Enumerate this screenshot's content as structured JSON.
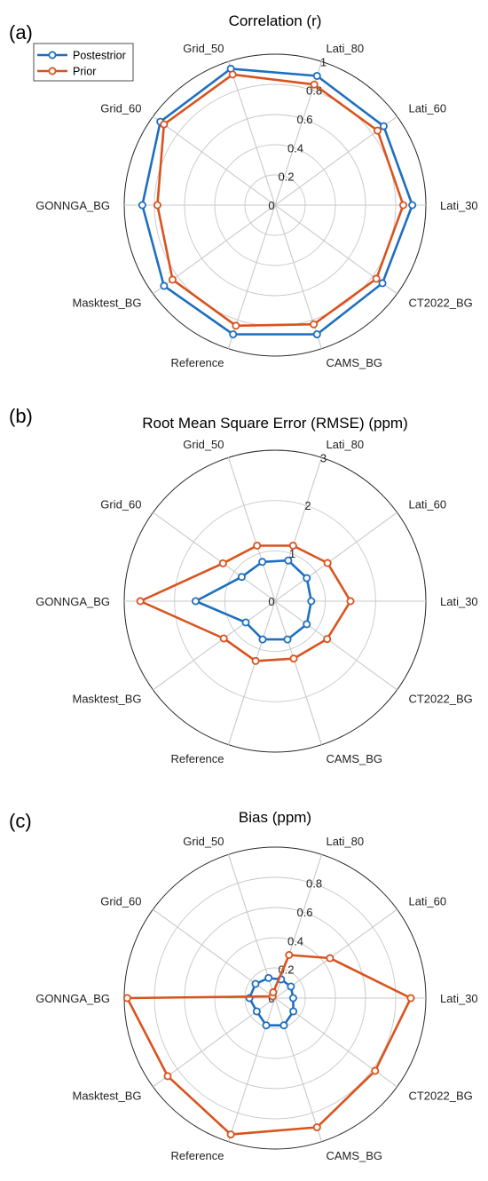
{
  "chart_data": [
    {
      "panel": "(a)",
      "type": "radar",
      "title": "Correlation (r)",
      "categories": [
        "Lati_80",
        "Lati_60",
        "Lati_30",
        "CT2022_BG",
        "CAMS_BG",
        "Reference",
        "Masktest_BG",
        "GONNGA_BG",
        "Grid_60",
        "Grid_50"
      ],
      "rticks": [
        "0",
        "0.2",
        "0.4",
        "0.6",
        "0.8",
        "1"
      ],
      "rlim": [
        0,
        1
      ],
      "series": [
        {
          "name": "Postestrior",
          "values": [
            0.9,
            0.89,
            0.91,
            0.88,
            0.9,
            0.9,
            0.91,
            0.88,
            0.94,
            0.95
          ]
        },
        {
          "name": "Prior",
          "values": [
            0.84,
            0.84,
            0.85,
            0.83,
            0.83,
            0.84,
            0.84,
            0.78,
            0.91,
            0.91
          ]
        }
      ],
      "legend": "top-left",
      "grid": true
    },
    {
      "panel": "(b)",
      "type": "radar",
      "title": "Root Mean Square Error (RMSE) (ppm)",
      "categories": [
        "Lati_80",
        "Lati_60",
        "Lati_30",
        "CT2022_BG",
        "CAMS_BG",
        "Reference",
        "Masktest_BG",
        "GONNGA_BG",
        "Grid_60",
        "Grid_50"
      ],
      "rticks": [
        "0",
        "1",
        "2",
        "3"
      ],
      "rlim": [
        0,
        3
      ],
      "series": [
        {
          "name": "Postestrior",
          "values": [
            0.85,
            0.78,
            0.72,
            0.78,
            0.8,
            0.8,
            0.72,
            1.58,
            0.82,
            0.82
          ]
        },
        {
          "name": "Prior",
          "values": [
            1.16,
            1.29,
            1.5,
            1.28,
            1.2,
            1.25,
            1.26,
            2.68,
            1.28,
            1.16
          ]
        }
      ],
      "grid": true
    },
    {
      "panel": "(c)",
      "type": "radar",
      "title": "Bias (ppm)",
      "categories": [
        "Lati_80",
        "Lati_60",
        "Lati_30",
        "CT2022_BG",
        "CAMS_BG",
        "Reference",
        "Masktest_BG",
        "GONNGA_BG",
        "Grid_60",
        "Grid_50"
      ],
      "rticks": [
        "0",
        "0.2",
        "0.4",
        "0.6",
        "0.8"
      ],
      "rlim": [
        0,
        1
      ],
      "series": [
        {
          "name": "Postestrior",
          "values": [
            0.13,
            0.13,
            0.12,
            0.15,
            0.19,
            0.19,
            0.15,
            0.17,
            0.16,
            0.14
          ]
        },
        {
          "name": "Prior",
          "values": [
            0.3,
            0.45,
            0.9,
            0.82,
            0.9,
            0.95,
            0.88,
            0.98,
            0.02,
            0.04
          ]
        }
      ],
      "grid": true
    }
  ],
  "colors": {
    "posterior": "#1f6fbf",
    "prior": "#d9531e",
    "grid": "#c8c8c8"
  }
}
